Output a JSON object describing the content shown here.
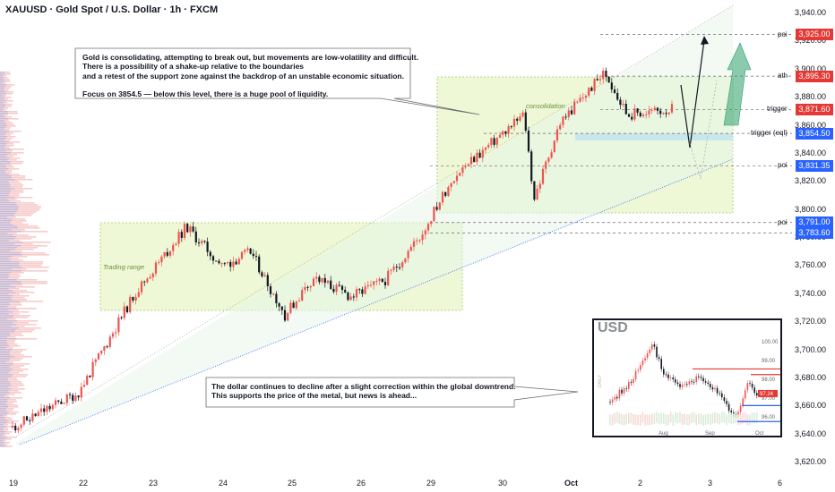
{
  "header": {
    "title": "XAUUSD · Gold Spot / U.S. Dollar · 1h · FXCM"
  },
  "callouts": {
    "top_lines": [
      "Gold is consolidating, attempting to break out, but movements are low-volatility and difficult.",
      "There is a possibility of a shake-up relative to the boundaries",
      "and a retest of the support zone against the backdrop of an unstable economic situation."
    ],
    "top_focus": "Focus on 3854.5 — below this level, there is a huge pool of liquidity.",
    "bottom_lines": [
      "The dollar continues to decline after a slight correction within the global downtrend.",
      "This supports the price of the metal, but news is ahead..."
    ]
  },
  "zones": {
    "trading_range": "Trading range",
    "consolidation": "consolidation"
  },
  "levels": [
    {
      "name": "poi",
      "value": 3925.0,
      "price": "3,925.00",
      "color": "#e53935"
    },
    {
      "name": "ath",
      "value": 3895.3,
      "price": "3,895.30",
      "color": "#e53935"
    },
    {
      "name": "trigger",
      "value": 3871.6,
      "price": "3,871.60",
      "color": "#e53935"
    },
    {
      "name": "trigger (eql)",
      "value": 3854.5,
      "price": "3,854.50",
      "color": "#2962ff"
    },
    {
      "name": "poi",
      "value": 3831.35,
      "price": "3,831.35",
      "color": "#2962ff"
    },
    {
      "name": "poi",
      "value": 3791.0,
      "price": "3,791.00",
      "color": "#2962ff"
    },
    {
      "name": "",
      "value": 3783.6,
      "price": "3,783.60",
      "color": "#2962ff"
    }
  ],
  "axis": {
    "y_ticks": [
      "3,940.00",
      "3,920.00",
      "3,900.00",
      "3,880.00",
      "3,860.00",
      "3,840.00",
      "3,820.00",
      "3,800.00",
      "3,780.00",
      "3,760.00",
      "3,740.00",
      "3,720.00",
      "3,700.00",
      "3,680.00",
      "3,660.00",
      "3,640.00",
      "3,620.00"
    ],
    "y_values": [
      3940,
      3920,
      3900,
      3880,
      3860,
      3840,
      3820,
      3800,
      3780,
      3760,
      3740,
      3720,
      3700,
      3680,
      3660,
      3640,
      3620
    ],
    "x_ticks": [
      "19",
      "22",
      "23",
      "24",
      "25",
      "26",
      "29",
      "30",
      "Oct",
      "2",
      "3",
      "6"
    ]
  },
  "inset": {
    "title": "USD",
    "y_ticks": [
      "100.00",
      "99.00",
      "98.00",
      "97.00",
      "96.00"
    ],
    "tag": "97.24",
    "x_ticks": [
      "Aug",
      "Sep",
      "Oct"
    ],
    "side_label": "DAILY"
  },
  "colors": {
    "bull": "#ef5350",
    "bear": "#131722",
    "blue": "#2962ff",
    "zone": "#e8f5c8",
    "arrow": "#2e9e6b"
  },
  "chart_data": {
    "type": "candlestick",
    "title": "XAUUSD · Gold Spot / U.S. Dollar · 1h · FXCM",
    "x_categories": [
      "19",
      "22",
      "23",
      "24",
      "25",
      "26",
      "29",
      "30",
      "Oct",
      "2",
      "3",
      "6"
    ],
    "path_close": [
      {
        "x": "19",
        "y": 3645
      },
      {
        "x": "22",
        "y": 3670
      },
      {
        "x": "23",
        "y": 3740
      },
      {
        "x": "23",
        "y": 3788
      },
      {
        "x": "24",
        "y": 3760
      },
      {
        "x": "24",
        "y": 3770
      },
      {
        "x": "25",
        "y": 3725
      },
      {
        "x": "25",
        "y": 3752
      },
      {
        "x": "26",
        "y": 3738
      },
      {
        "x": "26",
        "y": 3750
      },
      {
        "x": "29",
        "y": 3782
      },
      {
        "x": "29",
        "y": 3823
      },
      {
        "x": "30",
        "y": 3868
      },
      {
        "x": "30",
        "y": 3808
      },
      {
        "x": "Oct",
        "y": 3862
      },
      {
        "x": "Oct",
        "y": 3898
      },
      {
        "x": "2",
        "y": 3868
      },
      {
        "x": "2",
        "y": 3872
      }
    ],
    "ylim": [
      3615,
      3945
    ],
    "ylabel": "",
    "xlabel": "",
    "grid": false
  }
}
